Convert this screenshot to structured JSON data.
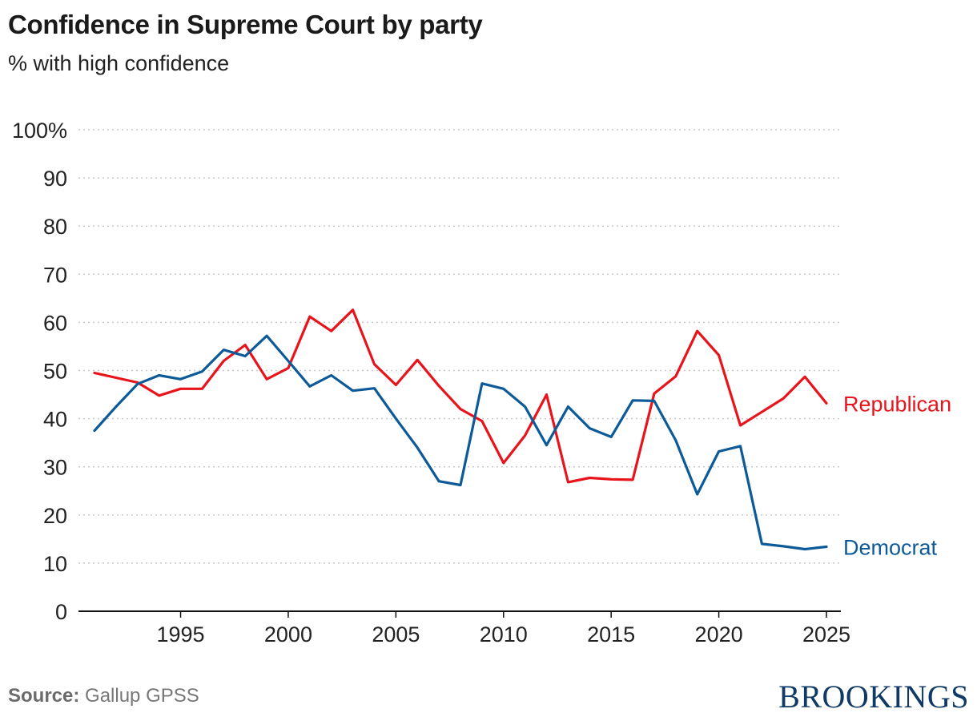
{
  "title": "Confidence in Supreme Court by party",
  "subtitle": "% with high confidence",
  "source": {
    "label": "Source:",
    "text": "Gallup GPSS"
  },
  "brand": "BROOKINGS",
  "colors": {
    "republican": "#e8141c",
    "democrat": "#0d5a99",
    "grid": "#c9c9c9",
    "axis": "#111111"
  },
  "chart_data": {
    "type": "line",
    "title": "Confidence in Supreme Court by party",
    "subtitle": "% with high confidence",
    "xlabel": "",
    "ylabel": "",
    "xlim": [
      1991,
      2025
    ],
    "ylim": [
      0,
      100
    ],
    "y_ticks": [
      0,
      10,
      20,
      30,
      40,
      50,
      60,
      70,
      80,
      90,
      100
    ],
    "y_tick_labels": [
      "0",
      "10",
      "20",
      "30",
      "40",
      "50",
      "60",
      "70",
      "80",
      "90",
      "100%"
    ],
    "x_ticks": [
      1995,
      2000,
      2005,
      2010,
      2015,
      2020,
      2025
    ],
    "x_tick_labels": [
      "1995",
      "2000",
      "2005",
      "2010",
      "2015",
      "2020",
      "2025"
    ],
    "grid": true,
    "legend": "direct labels at line ends",
    "x": [
      1991,
      1992,
      1993,
      1994,
      1995,
      1996,
      1997,
      1998,
      1999,
      2000,
      2001,
      2002,
      2003,
      2004,
      2005,
      2006,
      2007,
      2008,
      2009,
      2010,
      2011,
      2012,
      2013,
      2014,
      2015,
      2016,
      2017,
      2018,
      2019,
      2020,
      2021,
      2022,
      2023,
      2024,
      2025
    ],
    "series": [
      {
        "name": "Republican",
        "color": "#e8141c",
        "values": [
          49.5,
          48.5,
          47.5,
          44.8,
          46.2,
          46.2,
          52.0,
          55.3,
          48.2,
          50.5,
          61.2,
          58.2,
          62.6,
          51.3,
          47.0,
          52.2,
          46.8,
          42.0,
          39.5,
          30.8,
          36.5,
          45.0,
          26.8,
          27.7,
          27.4,
          27.3,
          45.2,
          48.8,
          58.2,
          53.2,
          38.6,
          41.4,
          44.2,
          48.7,
          43.2
        ]
      },
      {
        "name": "Democrat",
        "color": "#0d5a99",
        "values": [
          37.5,
          42.5,
          47.2,
          49.0,
          48.2,
          49.8,
          54.3,
          53.0,
          57.2,
          52.0,
          46.7,
          49.0,
          45.8,
          46.3,
          40.0,
          34.0,
          27.0,
          26.2,
          47.3,
          46.2,
          42.5,
          34.5,
          42.5,
          38.0,
          36.2,
          43.8,
          43.7,
          35.5,
          24.3,
          33.2,
          34.3,
          14.0,
          13.5,
          12.9,
          13.4
        ]
      }
    ]
  }
}
